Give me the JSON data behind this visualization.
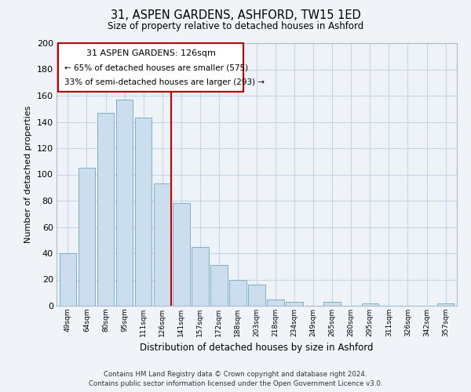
{
  "title": "31, ASPEN GARDENS, ASHFORD, TW15 1ED",
  "subtitle": "Size of property relative to detached houses in Ashford",
  "xlabel": "Distribution of detached houses by size in Ashford",
  "ylabel": "Number of detached properties",
  "bar_labels": [
    "49sqm",
    "64sqm",
    "80sqm",
    "95sqm",
    "111sqm",
    "126sqm",
    "141sqm",
    "157sqm",
    "172sqm",
    "188sqm",
    "203sqm",
    "218sqm",
    "234sqm",
    "249sqm",
    "265sqm",
    "280sqm",
    "295sqm",
    "311sqm",
    "326sqm",
    "342sqm",
    "357sqm"
  ],
  "bar_values": [
    40,
    105,
    147,
    157,
    143,
    93,
    78,
    45,
    31,
    20,
    16,
    5,
    3,
    0,
    3,
    0,
    2,
    0,
    0,
    0,
    2
  ],
  "bar_color": "#ccdeed",
  "bar_edge_color": "#7aafc8",
  "vline_color": "#cc0000",
  "annotation_title": "31 ASPEN GARDENS: 126sqm",
  "annotation_line1": "← 65% of detached houses are smaller (575)",
  "annotation_line2": "33% of semi-detached houses are larger (293) →",
  "annotation_box_color": "#ffffff",
  "annotation_box_edge_color": "#cc0000",
  "ylim": [
    0,
    200
  ],
  "yticks": [
    0,
    20,
    40,
    60,
    80,
    100,
    120,
    140,
    160,
    180,
    200
  ],
  "footer_line1": "Contains HM Land Registry data © Crown copyright and database right 2024.",
  "footer_line2": "Contains public sector information licensed under the Open Government Licence v3.0.",
  "background_color": "#f0f4f8",
  "plot_bg_color": "#eef3f8",
  "grid_color": "#c5d5e5"
}
